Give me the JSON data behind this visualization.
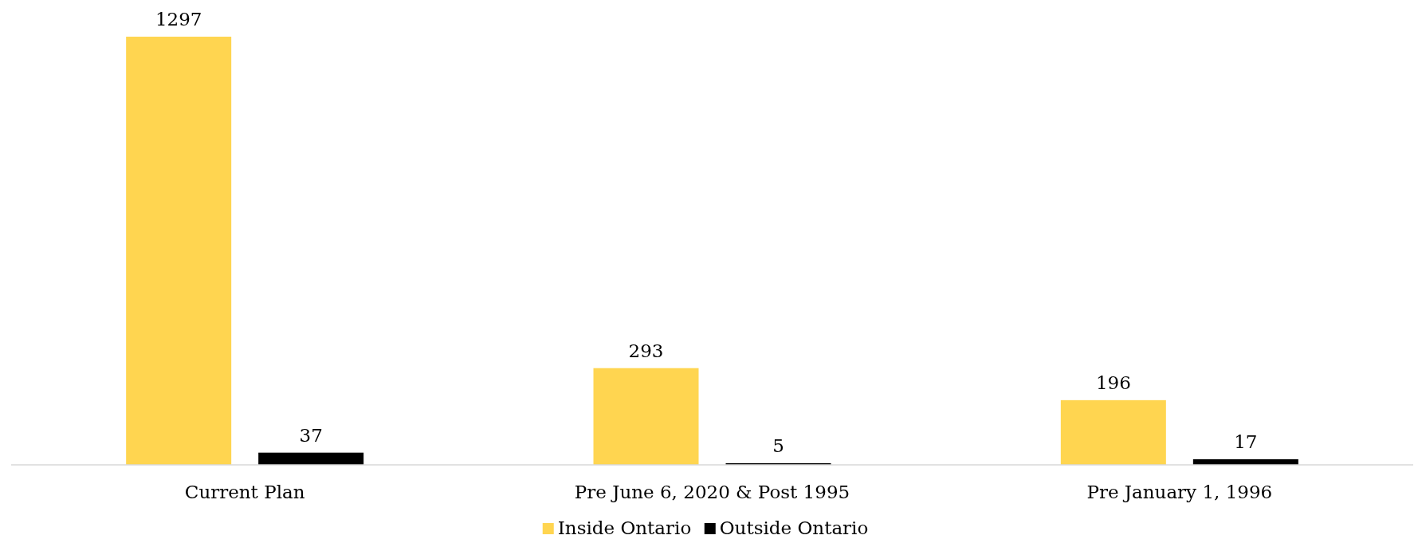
{
  "chart_data": {
    "type": "bar",
    "categories": [
      "Current Plan",
      "Pre June 6, 2020 & Post 1995",
      "Pre January 1, 1996"
    ],
    "series": [
      {
        "name": "Inside Ontario",
        "color": "#ffd550",
        "values": [
          1297,
          293,
          196
        ]
      },
      {
        "name": "Outside Ontario",
        "color": "#000000",
        "values": [
          37,
          5,
          17
        ]
      }
    ],
    "data_labels": true,
    "legend": "bottom"
  }
}
